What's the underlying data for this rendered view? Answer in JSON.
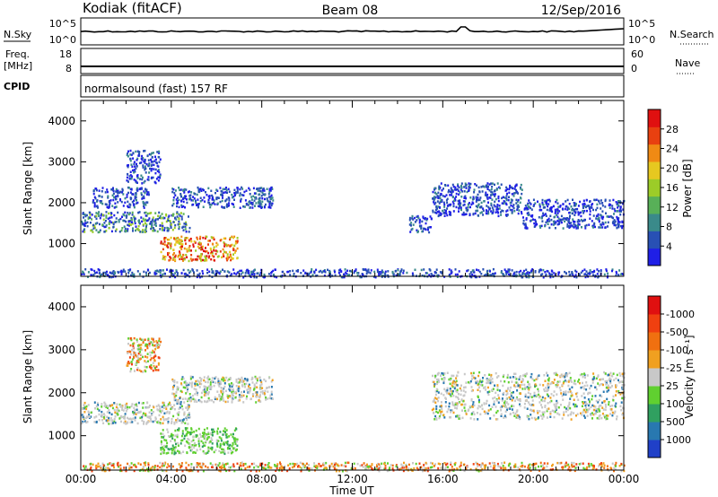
{
  "header": {
    "station": "Kodiak (fitACF)",
    "beam": "Beam 08",
    "date": "12/Sep/2016"
  },
  "noise_panel": {
    "left_label": "N.Sky",
    "left_ticks": [
      "10^5",
      "10^0"
    ],
    "right_label": "N.Search",
    "right_ticks": [
      "10^5",
      "10^0"
    ]
  },
  "freq_panel": {
    "left_label_line1": "Freq.",
    "left_label_line2": "[MHz]",
    "left_ticks": [
      "18",
      "8"
    ],
    "right_label": "Nave",
    "right_ticks": [
      "60",
      "0"
    ]
  },
  "cpid_panel": {
    "label": "CPID",
    "program": "normalsound (fast) 157 RF"
  },
  "time_axis": {
    "label": "Time UT",
    "ticks": [
      "00:00",
      "04:00",
      "08:00",
      "12:00",
      "16:00",
      "20:00",
      "00:00"
    ]
  },
  "chart_data": [
    {
      "type": "heatmap",
      "ylabel": "Slant Range [km]",
      "yticks": [
        1000,
        2000,
        3000,
        4000
      ],
      "ylim": [
        200,
        4500
      ],
      "xlim_hours": [
        0,
        24
      ],
      "colorbar": {
        "label": "Power [dB]",
        "ticks": [
          "4",
          "8",
          "12",
          "16",
          "20",
          "24",
          "28"
        ],
        "colors": [
          "#1f1fe6",
          "#2850b4",
          "#3a8a8a",
          "#58b058",
          "#9ccc28",
          "#e6c820",
          "#f08a14",
          "#e84010",
          "#e01010"
        ]
      },
      "echo_regions": [
        {
          "t_start": 0.0,
          "t_end": 4.8,
          "range_low": 1300,
          "range_high": 1800,
          "level": "low-mid"
        },
        {
          "t_start": 0.5,
          "t_end": 3.0,
          "range_low": 1900,
          "range_high": 2400,
          "level": "low"
        },
        {
          "t_start": 2.0,
          "t_end": 3.5,
          "range_low": 2500,
          "range_high": 3300,
          "level": "low"
        },
        {
          "t_start": 4.0,
          "t_end": 8.5,
          "range_low": 1900,
          "range_high": 2400,
          "level": "low"
        },
        {
          "t_start": 3.5,
          "t_end": 6.9,
          "range_low": 600,
          "range_high": 1200,
          "level": "high"
        },
        {
          "t_start": 15.5,
          "t_end": 19.5,
          "range_low": 1700,
          "range_high": 2500,
          "level": "low"
        },
        {
          "t_start": 19.5,
          "t_end": 24.0,
          "range_low": 1400,
          "range_high": 2100,
          "level": "low"
        },
        {
          "t_start": 14.5,
          "t_end": 15.5,
          "range_low": 1300,
          "range_high": 1700,
          "level": "low"
        },
        {
          "t_start": 0.0,
          "t_end": 24.0,
          "range_low": 200,
          "range_high": 400,
          "level": "low"
        }
      ]
    },
    {
      "type": "heatmap",
      "ylabel": "Slant Range [km]",
      "yticks": [
        1000,
        2000,
        3000,
        4000
      ],
      "ylim": [
        200,
        4500
      ],
      "xlim_hours": [
        0,
        24
      ],
      "colorbar": {
        "label": "Velocity [m s⁻¹]",
        "ticks": [
          "1000",
          "500",
          "100",
          "25",
          "-25",
          "-100",
          "-500",
          "-1000"
        ],
        "colors": [
          "#2040c8",
          "#2878b0",
          "#30a060",
          "#60d030",
          "#c8c8c8",
          "#f0a020",
          "#f07010",
          "#f04010",
          "#e01010"
        ]
      },
      "echo_regions": [
        {
          "t_start": 0.0,
          "t_end": 4.8,
          "range_low": 1300,
          "range_high": 1800,
          "level": "near-zero"
        },
        {
          "t_start": 4.0,
          "t_end": 8.5,
          "range_low": 1800,
          "range_high": 2400,
          "level": "near-zero"
        },
        {
          "t_start": 3.5,
          "t_end": 6.9,
          "range_low": 600,
          "range_high": 1200,
          "level": "positive"
        },
        {
          "t_start": 2.0,
          "t_end": 3.5,
          "range_low": 2500,
          "range_high": 3300,
          "level": "negative"
        },
        {
          "t_start": 15.5,
          "t_end": 24.0,
          "range_low": 1400,
          "range_high": 2500,
          "level": "near-zero"
        },
        {
          "t_start": 0.0,
          "t_end": 24.0,
          "range_low": 200,
          "range_high": 400,
          "level": "negative"
        }
      ]
    }
  ]
}
